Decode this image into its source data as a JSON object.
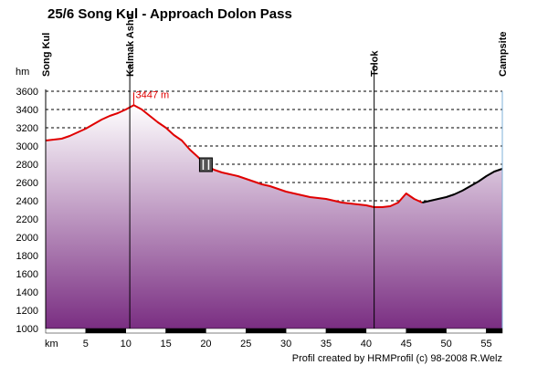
{
  "chart_data": {
    "type": "area",
    "title": "25/6 Song Kul - Approach Dolon Pass",
    "ylabel": "hm",
    "xlabel": "km",
    "xlim": [
      0,
      57
    ],
    "ylim": [
      1000,
      3600
    ],
    "x_ticks": [
      5,
      10,
      15,
      20,
      25,
      30,
      35,
      40,
      45,
      50,
      55
    ],
    "y_ticks": [
      1000,
      1200,
      1400,
      1600,
      1800,
      2000,
      2200,
      2400,
      2600,
      2800,
      3000,
      3200,
      3400,
      3600
    ],
    "grid": true,
    "colors": {
      "profile_line": "#e00000",
      "profile_tail": "#000000",
      "fill_top": "#ffffff",
      "fill_bottom": "#7a2e82"
    },
    "series": [
      {
        "values_x": [
          0,
          1,
          2,
          3,
          4,
          5,
          6,
          7,
          8,
          9,
          10,
          11,
          12,
          13,
          14,
          15,
          16,
          17,
          18,
          19,
          20,
          21,
          22,
          23,
          24,
          25,
          26,
          27,
          28,
          29,
          30,
          31,
          32,
          33,
          34,
          35,
          36,
          37,
          38,
          39,
          40,
          41,
          42,
          43,
          44,
          45,
          46,
          47
        ],
        "values_y": [
          3060,
          3070,
          3080,
          3110,
          3150,
          3190,
          3240,
          3290,
          3330,
          3360,
          3400,
          3447,
          3400,
          3330,
          3260,
          3200,
          3120,
          3060,
          2960,
          2880,
          2790,
          2740,
          2710,
          2690,
          2670,
          2640,
          2610,
          2580,
          2560,
          2530,
          2500,
          2480,
          2460,
          2440,
          2430,
          2420,
          2400,
          2380,
          2370,
          2360,
          2350,
          2330,
          2330,
          2340,
          2380,
          2480,
          2420,
          2380
        ]
      },
      {
        "values_x": [
          47,
          48,
          49,
          50,
          51,
          52,
          53,
          54,
          55,
          56,
          57
        ],
        "values_y": [
          2380,
          2400,
          2420,
          2440,
          2470,
          2510,
          2560,
          2610,
          2670,
          2720,
          2750
        ]
      }
    ],
    "waypoints": [
      {
        "label": "Song Kul",
        "km": 0
      },
      {
        "label": "Kalmak Ashu",
        "km": 10.5
      },
      {
        "label": "Tolok",
        "km": 41
      },
      {
        "label": "Campsite",
        "km": 57
      }
    ],
    "annotations": [
      {
        "text": "3447 m",
        "km": 11,
        "elev": 3447
      },
      {
        "icon": "restaurant-icon",
        "km": 20,
        "elev": 2790
      }
    ],
    "credit": "Profil created by HRMProfil (c) 98-2008 R.Welz"
  }
}
